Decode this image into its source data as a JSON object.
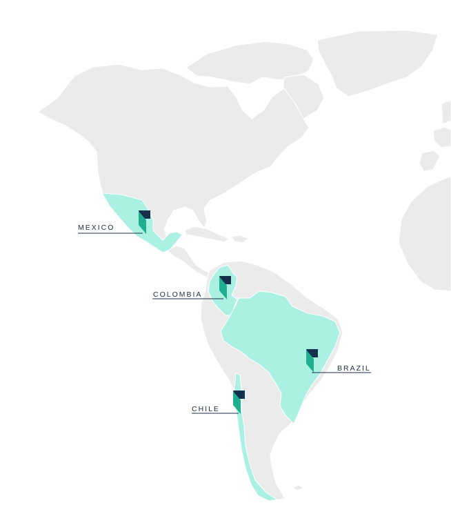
{
  "map": {
    "colors": {
      "background": "#ffffff",
      "land": "#ebebeb",
      "highlight": "#aaf0e3",
      "marker_dark": "#14304c",
      "marker_teal": "#1fae90",
      "text": "#1b2e45"
    },
    "highlighted_countries": [
      "Mexico",
      "Colombia",
      "Brazil",
      "Chile"
    ],
    "labels": {
      "mexico": "MEXICO",
      "colombia": "COLOMBIA",
      "brazil": "BRAZIL",
      "chile": "CHILE"
    },
    "marker_icon": "flag-marker-icon"
  }
}
